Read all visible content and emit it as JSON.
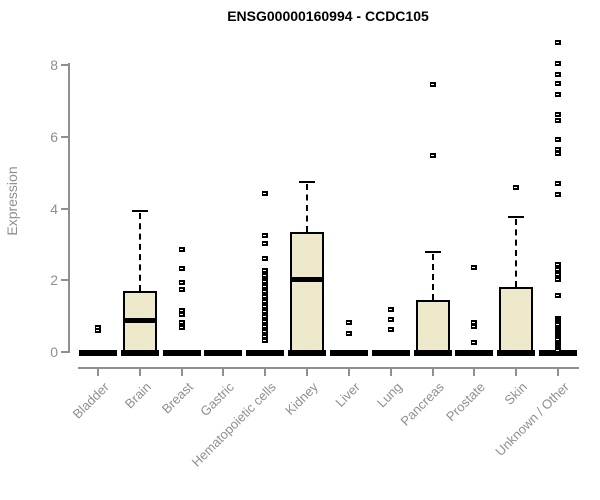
{
  "title": "ENSG00000160994 - CCDC105",
  "colors": {
    "box_fill": "#EFE9CC",
    "box_stroke": "#000000",
    "axis_gray": "#8F8F8F",
    "title_color": "#000000"
  },
  "chart_data": {
    "type": "boxplot",
    "title": "ENSG00000160994 - CCDC105",
    "xlabel": "",
    "ylabel": "Expression",
    "ylim": [
      0,
      8.7
    ],
    "yticks": [
      0,
      2,
      4,
      6,
      8
    ],
    "grid": false,
    "legend": false,
    "categories": [
      "Bladder",
      "Brain",
      "Breast",
      "Gastric",
      "Hematopoietic cells",
      "Kidney",
      "Liver",
      "Lung",
      "Pancreas",
      "Prostate",
      "Skin",
      "Unknown / Other"
    ],
    "series": [
      {
        "name": "Bladder",
        "median": 0,
        "q1": 0,
        "q3": 0,
        "whisker_low": 0,
        "whisker_high": 0,
        "outliers": [
          0.69,
          0.6
        ]
      },
      {
        "name": "Brain",
        "median": 0.9,
        "q1": 0,
        "q3": 1.7,
        "whisker_low": 0,
        "whisker_high": 3.93,
        "outliers": []
      },
      {
        "name": "Breast",
        "median": 0,
        "q1": 0,
        "q3": 0,
        "whisker_low": 0,
        "whisker_high": 0,
        "outliers": [
          2.87,
          2.34,
          1.95,
          1.77,
          1.16,
          1.05,
          0.84,
          0.7
        ]
      },
      {
        "name": "Gastric",
        "median": 0,
        "q1": 0,
        "q3": 0,
        "whisker_low": 0,
        "whisker_high": 0,
        "outliers": []
      },
      {
        "name": "Hematopoietic cells",
        "median": 0,
        "q1": 0,
        "q3": 0,
        "whisker_low": 0,
        "whisker_high": 0,
        "outliers": [
          4.45,
          3.27,
          3.03,
          2.62,
          2.28,
          2.15,
          2.05,
          1.98,
          1.91,
          1.84,
          1.77,
          1.7,
          1.63,
          1.56,
          1.49,
          1.42,
          1.35,
          1.28,
          1.21,
          1.14,
          1.07,
          1.0,
          0.93,
          0.86,
          0.79,
          0.72,
          0.65,
          0.58,
          0.51,
          0.45,
          0.33
        ]
      },
      {
        "name": "Kidney",
        "median": 2.05,
        "q1": 0,
        "q3": 3.35,
        "whisker_low": 0,
        "whisker_high": 4.74,
        "outliers": []
      },
      {
        "name": "Liver",
        "median": 0,
        "q1": 0,
        "q3": 0,
        "whisker_low": 0,
        "whisker_high": 0,
        "outliers": [
          0.83,
          0.52
        ]
      },
      {
        "name": "Lung",
        "median": 0,
        "q1": 0,
        "q3": 0,
        "whisker_low": 0,
        "whisker_high": 0,
        "outliers": [
          1.21,
          0.93,
          0.65
        ]
      },
      {
        "name": "Pancreas",
        "median": 0,
        "q1": 0,
        "q3": 1.45,
        "whisker_low": 0,
        "whisker_high": 2.79,
        "outliers": [
          7.47,
          5.51
        ]
      },
      {
        "name": "Prostate",
        "median": 0,
        "q1": 0,
        "q3": 0,
        "whisker_low": 0,
        "whisker_high": 0,
        "outliers": [
          2.37,
          0.83,
          0.72,
          0.27
        ]
      },
      {
        "name": "Skin",
        "median": 0,
        "q1": 0,
        "q3": 1.8,
        "whisker_low": 0,
        "whisker_high": 3.77,
        "outliers": [
          4.6
        ]
      },
      {
        "name": "Unknown / Other",
        "median": 0,
        "q1": 0,
        "q3": 0,
        "whisker_low": 0,
        "whisker_high": 0,
        "outliers": [
          8.65,
          8.05,
          7.77,
          7.5,
          7.21,
          6.65,
          6.48,
          5.95,
          5.67,
          5.54,
          4.72,
          4.4,
          2.45,
          2.32,
          2.18,
          2.05,
          1.58,
          0.95,
          0.89,
          0.83,
          0.77,
          0.71,
          0.65,
          0.59,
          0.53,
          0.47,
          0.41,
          0.35,
          0.29,
          0.23,
          0.17,
          0.11,
          0.05
        ]
      }
    ]
  }
}
